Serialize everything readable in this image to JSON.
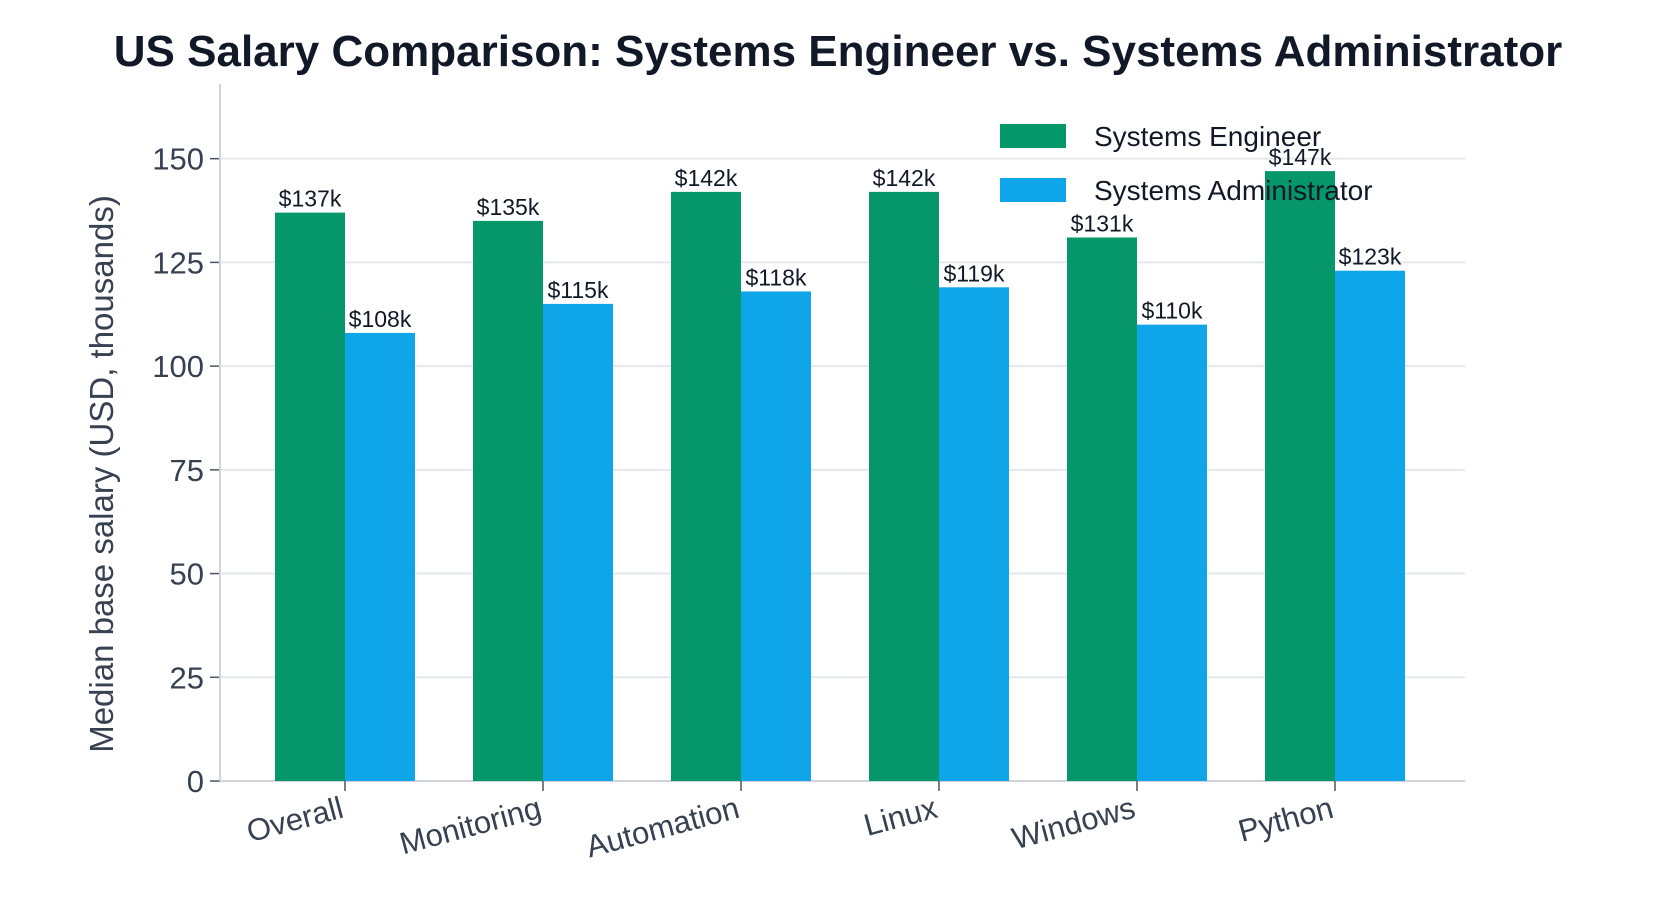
{
  "chart_data": {
    "type": "bar",
    "title": "US Salary Comparison: Systems Engineer vs. Systems Administrator",
    "xlabel": "",
    "ylabel": "Median base salary (USD, thousands)",
    "categories": [
      "Overall",
      "Monitoring",
      "Automation",
      "Linux",
      "Windows",
      "Python"
    ],
    "series": [
      {
        "name": "Systems Engineer",
        "color": "#059669",
        "values": [
          137,
          135,
          142,
          142,
          131,
          147
        ],
        "labels": [
          "$137k",
          "$135k",
          "$142k",
          "$142k",
          "$131k",
          "$147k"
        ]
      },
      {
        "name": "Systems Administrator",
        "color": "#0EA5E9",
        "values": [
          108,
          115,
          118,
          119,
          110,
          123
        ],
        "labels": [
          "$108k",
          "$115k",
          "$118k",
          "$119k",
          "$110k",
          "$123k"
        ]
      }
    ],
    "ylim": [
      0,
      168
    ],
    "yticks": [
      0,
      25,
      50,
      75,
      100,
      125,
      150
    ],
    "grid": "horizontal",
    "legend_position": "top-right"
  }
}
